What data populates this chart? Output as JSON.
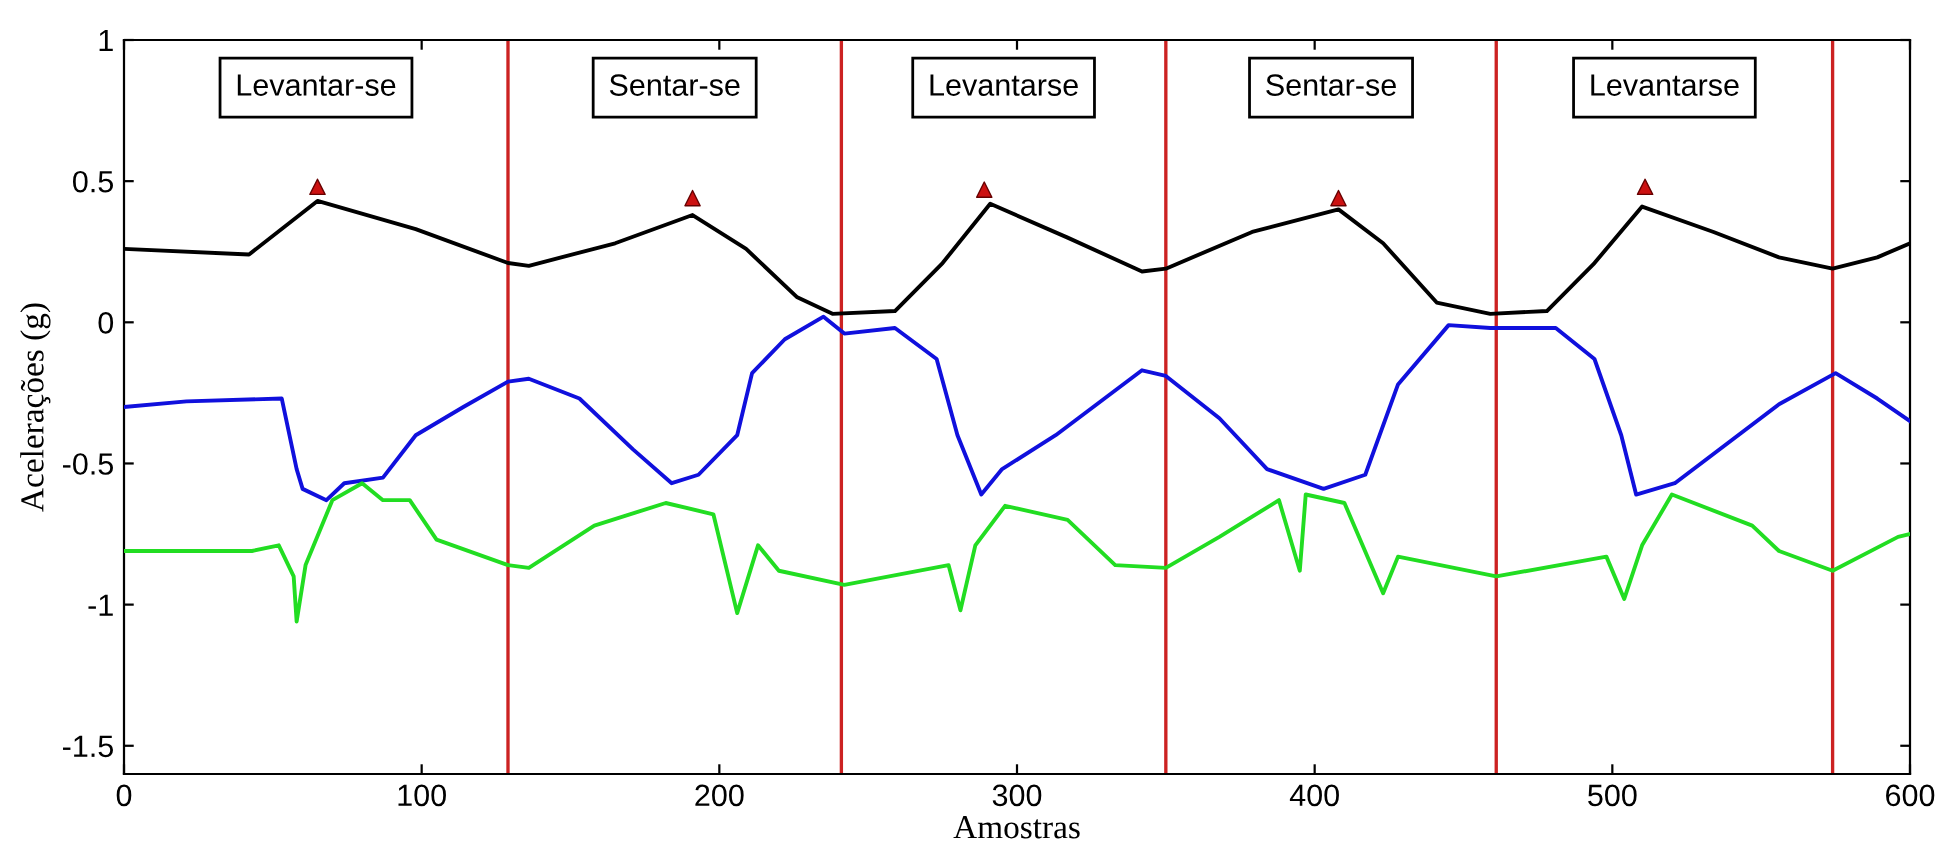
{
  "chart_data": {
    "type": "line",
    "xlabel": "Amostras",
    "ylabel": "Acelerações (g)",
    "xlim": [
      0,
      600
    ],
    "ylim": [
      -1.6,
      1
    ],
    "xticks": [
      0,
      100,
      200,
      300,
      400,
      500,
      600
    ],
    "yticks": [
      -1.5,
      -1,
      -0.5,
      0,
      0.5,
      1
    ],
    "grid": false,
    "legend": false,
    "annotations": [
      "Levantar-se",
      "Sentar-se",
      "Levantarse",
      "Sentar-se",
      "Levantarse"
    ],
    "ref_lines": [
      {
        "axis": "x",
        "value": 129,
        "color": "#cc2222"
      },
      {
        "axis": "x",
        "value": 241,
        "color": "#cc2222"
      },
      {
        "axis": "x",
        "value": 350,
        "color": "#cc2222"
      },
      {
        "axis": "x",
        "value": 461,
        "color": "#cc2222"
      },
      {
        "axis": "x",
        "value": 574,
        "color": "#cc2222"
      }
    ],
    "series": [
      {
        "color": "#000000",
        "x": [
          0,
          42,
          65,
          98,
          129,
          136,
          165,
          191,
          209,
          226,
          238,
          259,
          275,
          291,
          317,
          342,
          350,
          379,
          408,
          423,
          441,
          459,
          478,
          494,
          510,
          534,
          556,
          574,
          589,
          600
        ],
        "values": [
          0.26,
          0.24,
          0.43,
          0.33,
          0.21,
          0.2,
          0.28,
          0.38,
          0.26,
          0.09,
          0.03,
          0.04,
          0.21,
          0.42,
          0.3,
          0.18,
          0.19,
          0.32,
          0.4,
          0.28,
          0.07,
          0.03,
          0.04,
          0.21,
          0.41,
          0.32,
          0.23,
          0.19,
          0.23,
          0.28
        ]
      },
      {
        "color": "#1010dd",
        "x": [
          0,
          21,
          53,
          58,
          60,
          68,
          74,
          87,
          98,
          114,
          129,
          136,
          153,
          171,
          184,
          193,
          206,
          211,
          222,
          235,
          242,
          259,
          273,
          280,
          288,
          295,
          313,
          342,
          350,
          368,
          384,
          403,
          417,
          428,
          445,
          459,
          481,
          494,
          503,
          508,
          521,
          556,
          575,
          589,
          600
        ],
        "values": [
          -0.3,
          -0.28,
          -0.27,
          -0.52,
          -0.59,
          -0.63,
          -0.57,
          -0.55,
          -0.4,
          -0.3,
          -0.21,
          -0.2,
          -0.27,
          -0.45,
          -0.57,
          -0.54,
          -0.4,
          -0.18,
          -0.06,
          0.02,
          -0.04,
          -0.02,
          -0.13,
          -0.4,
          -0.61,
          -0.52,
          -0.4,
          -0.17,
          -0.19,
          -0.34,
          -0.52,
          -0.59,
          -0.54,
          -0.22,
          -0.01,
          -0.02,
          -0.02,
          -0.13,
          -0.4,
          -0.61,
          -0.57,
          -0.29,
          -0.18,
          -0.27,
          -0.35
        ]
      },
      {
        "color": "#22dd22",
        "x": [
          0,
          43,
          52,
          57,
          58,
          61,
          70,
          80,
          87,
          96,
          105,
          129,
          136,
          158,
          182,
          198,
          206,
          213,
          220,
          242,
          277,
          281,
          286,
          296,
          317,
          333,
          350,
          368,
          388,
          395,
          397,
          410,
          423,
          428,
          461,
          498,
          504,
          510,
          520,
          547,
          556,
          574,
          596,
          600
        ],
        "values": [
          -0.81,
          -0.81,
          -0.79,
          -0.9,
          -1.06,
          -0.86,
          -0.63,
          -0.57,
          -0.63,
          -0.63,
          -0.77,
          -0.86,
          -0.87,
          -0.72,
          -0.64,
          -0.68,
          -1.03,
          -0.79,
          -0.88,
          -0.93,
          -0.86,
          -1.02,
          -0.79,
          -0.65,
          -0.7,
          -0.86,
          -0.87,
          -0.76,
          -0.63,
          -0.88,
          -0.61,
          -0.64,
          -0.96,
          -0.83,
          -0.9,
          -0.83,
          -0.98,
          -0.79,
          -0.61,
          -0.72,
          -0.81,
          -0.88,
          -0.76,
          -0.75
        ]
      },
      {
        "type": "scatter",
        "color": "#cc1111",
        "marker": "triangle",
        "x": [
          65,
          191,
          289,
          408,
          511
        ],
        "values": [
          0.48,
          0.44,
          0.47,
          0.44,
          0.48
        ]
      }
    ]
  }
}
